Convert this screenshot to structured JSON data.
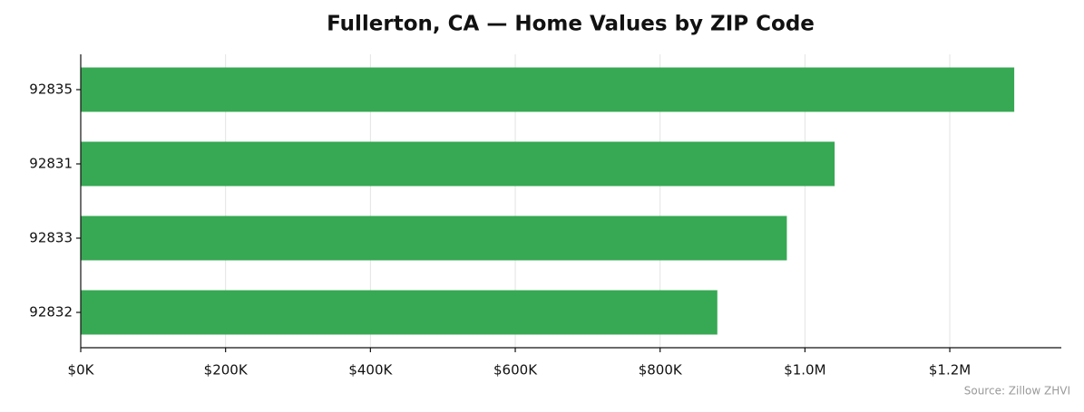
{
  "chart_data": {
    "type": "bar",
    "orientation": "horizontal",
    "title": "Fullerton, CA — Home Values by ZIP Code",
    "categories": [
      "92835",
      "92831",
      "92833",
      "92832"
    ],
    "values": [
      1289000,
      1041000,
      975000,
      879000
    ],
    "color": "#37a853",
    "xlim": [
      0,
      1354000
    ],
    "xticks": [
      {
        "value": 0,
        "label": "$0K"
      },
      {
        "value": 200000,
        "label": "$200K"
      },
      {
        "value": 400000,
        "label": "$400K"
      },
      {
        "value": 600000,
        "label": "$600K"
      },
      {
        "value": 800000,
        "label": "$800K"
      },
      {
        "value": 1000000,
        "label": "$1.0M"
      },
      {
        "value": 1200000,
        "label": "$1.2M"
      }
    ],
    "grid": true,
    "source": "Source: Zillow ZHVI"
  }
}
